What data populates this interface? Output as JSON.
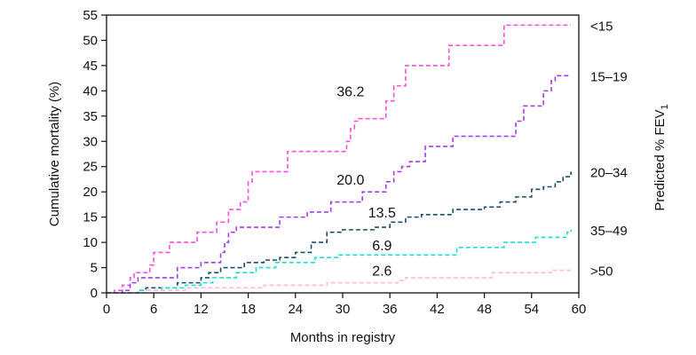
{
  "chart_data": {
    "type": "line",
    "step": true,
    "xlabel": "Months in registry",
    "ylabel": "Cumulative mortality (%)",
    "right_label": {
      "main": "Predicted % FEV",
      "subscript": "1"
    },
    "xlim": [
      0,
      60
    ],
    "ylim": [
      0,
      55
    ],
    "xticks": [
      0,
      6,
      12,
      18,
      24,
      30,
      36,
      42,
      48,
      54,
      60
    ],
    "yticks": [
      0,
      5,
      10,
      15,
      20,
      25,
      30,
      35,
      40,
      45,
      50,
      55
    ],
    "grid": false,
    "legend": "right-side labels",
    "series": [
      {
        "name": "<15",
        "color": "#ff4fd8",
        "points": [
          [
            0,
            0
          ],
          [
            1,
            0.5
          ],
          [
            2,
            1.5
          ],
          [
            3,
            3
          ],
          [
            3.5,
            4
          ],
          [
            5,
            4
          ],
          [
            5.5,
            5.5
          ],
          [
            6,
            8
          ],
          [
            7.5,
            8
          ],
          [
            8,
            10
          ],
          [
            11,
            10
          ],
          [
            11.5,
            12
          ],
          [
            13.5,
            12
          ],
          [
            14,
            14
          ],
          [
            15,
            14
          ],
          [
            15.5,
            16.5
          ],
          [
            16.5,
            16.5
          ],
          [
            17,
            18
          ],
          [
            18,
            22
          ],
          [
            18.5,
            24
          ],
          [
            22.5,
            24
          ],
          [
            23,
            28
          ],
          [
            30,
            28
          ],
          [
            30.5,
            30
          ],
          [
            31,
            32.5
          ],
          [
            31.5,
            34
          ],
          [
            32,
            34.5
          ],
          [
            35,
            34.5
          ],
          [
            35.5,
            38
          ],
          [
            36,
            38
          ],
          [
            36.5,
            41
          ],
          [
            37.5,
            41
          ],
          [
            38,
            45
          ],
          [
            43,
            45
          ],
          [
            43.5,
            49
          ],
          [
            50,
            49
          ],
          [
            50.5,
            53
          ],
          [
            59,
            53
          ]
        ]
      },
      {
        "name": "15–19",
        "color": "#a23dea",
        "points": [
          [
            0,
            0
          ],
          [
            2,
            0.5
          ],
          [
            3,
            2
          ],
          [
            4,
            3
          ],
          [
            8,
            3
          ],
          [
            9,
            5
          ],
          [
            11,
            5
          ],
          [
            12,
            6
          ],
          [
            14,
            6
          ],
          [
            14.5,
            8
          ],
          [
            15,
            10
          ],
          [
            15.5,
            12
          ],
          [
            16,
            12
          ],
          [
            16.5,
            13
          ],
          [
            21,
            13
          ],
          [
            22,
            15
          ],
          [
            25,
            15
          ],
          [
            25.5,
            16
          ],
          [
            28,
            16
          ],
          [
            28.5,
            18
          ],
          [
            32,
            18
          ],
          [
            32.5,
            20
          ],
          [
            35,
            20
          ],
          [
            35.5,
            22
          ],
          [
            36.5,
            24
          ],
          [
            37,
            24
          ],
          [
            37.5,
            25
          ],
          [
            38,
            25
          ],
          [
            38.5,
            26
          ],
          [
            40,
            26
          ],
          [
            40.5,
            29
          ],
          [
            44,
            31
          ],
          [
            51,
            31
          ],
          [
            52,
            34
          ],
          [
            53,
            37
          ],
          [
            55,
            37
          ],
          [
            55.5,
            40
          ],
          [
            56,
            40
          ],
          [
            56.5,
            42
          ],
          [
            57,
            43
          ],
          [
            59,
            43
          ]
        ]
      },
      {
        "name": "20–34",
        "color": "#1b4d68",
        "points": [
          [
            0,
            0
          ],
          [
            4,
            0.5
          ],
          [
            5,
            1
          ],
          [
            8,
            1
          ],
          [
            9,
            2
          ],
          [
            11,
            2
          ],
          [
            12,
            3
          ],
          [
            13,
            4
          ],
          [
            14,
            4
          ],
          [
            14.5,
            5
          ],
          [
            17,
            5
          ],
          [
            17.5,
            6
          ],
          [
            20,
            6.5
          ],
          [
            22,
            7
          ],
          [
            24,
            8
          ],
          [
            26,
            10
          ],
          [
            28,
            12
          ],
          [
            30,
            12.5
          ],
          [
            34,
            13
          ],
          [
            36,
            14
          ],
          [
            38,
            15
          ],
          [
            40,
            15.5
          ],
          [
            44,
            16.5
          ],
          [
            48,
            17
          ],
          [
            50,
            18
          ],
          [
            52,
            19
          ],
          [
            54,
            20.5
          ],
          [
            55.5,
            21
          ],
          [
            57,
            22
          ],
          [
            58,
            23
          ],
          [
            59,
            24
          ]
        ]
      },
      {
        "name": "35–49",
        "color": "#22ddd0",
        "points": [
          [
            0,
            0
          ],
          [
            4,
            0.5
          ],
          [
            7,
            1
          ],
          [
            10,
            1.5
          ],
          [
            12,
            2
          ],
          [
            13,
            2
          ],
          [
            13.5,
            3
          ],
          [
            16,
            3
          ],
          [
            16.5,
            4
          ],
          [
            18,
            4
          ],
          [
            19,
            5
          ],
          [
            21,
            5
          ],
          [
            21.5,
            6
          ],
          [
            26,
            6
          ],
          [
            26.5,
            7
          ],
          [
            29,
            7
          ],
          [
            29.5,
            7.5
          ],
          [
            44,
            7.5
          ],
          [
            44.5,
            9
          ],
          [
            50,
            9
          ],
          [
            50.5,
            10
          ],
          [
            54,
            10
          ],
          [
            54.5,
            11
          ],
          [
            58,
            11
          ],
          [
            58.5,
            12
          ],
          [
            59,
            12.5
          ]
        ]
      },
      {
        "name": ">50",
        "color": "#ffb8de",
        "points": [
          [
            0,
            0
          ],
          [
            5,
            0.5
          ],
          [
            10,
            1
          ],
          [
            20,
            1.5
          ],
          [
            28,
            2
          ],
          [
            37,
            2.5
          ],
          [
            38,
            3
          ],
          [
            48,
            3
          ],
          [
            49,
            4
          ],
          [
            56,
            4
          ],
          [
            56.5,
            4.5
          ],
          [
            59,
            4.5
          ]
        ]
      }
    ],
    "annotations": [
      {
        "text": "36.2",
        "x": 31,
        "y": 40
      },
      {
        "text": "20.0",
        "x": 31,
        "y": 22.5
      },
      {
        "text": "13.5",
        "x": 35,
        "y": 16
      },
      {
        "text": "6.9",
        "x": 35,
        "y": 9.5
      },
      {
        "text": "2.6",
        "x": 35,
        "y": 4.5
      }
    ]
  }
}
